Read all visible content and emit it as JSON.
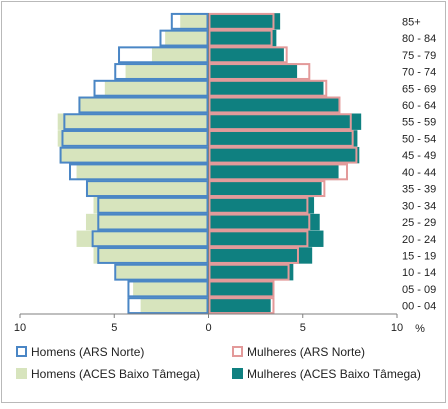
{
  "chart_data": {
    "type": "bar",
    "subtype": "population-pyramid",
    "unit_label": "%",
    "xlim": [
      -10,
      10
    ],
    "x_ticks": [
      "10",
      "5",
      "0",
      "5",
      "10"
    ],
    "categories": [
      "00 - 04",
      "05 - 09",
      "10 - 14",
      "15 - 19",
      "20 - 24",
      "25 - 29",
      "30 - 34",
      "35 - 39",
      "40 - 44",
      "45 - 49",
      "50 - 54",
      "55 - 59",
      "60 - 64",
      "65 - 69",
      "70 - 74",
      "75 - 79",
      "80 - 84",
      "85+"
    ],
    "series": [
      {
        "name": "Homens (ACES Baixo Tâmega)",
        "side": "left",
        "style": "filled",
        "color": "#d7e4bd",
        "values": [
          3.6,
          4.0,
          4.9,
          6.1,
          7.0,
          6.5,
          6.1,
          6.4,
          7.0,
          7.9,
          8.0,
          8.0,
          6.9,
          5.5,
          4.4,
          3.0,
          2.3,
          1.5
        ]
      },
      {
        "name": "Homens (ARS Norte)",
        "side": "left",
        "style": "outline",
        "color": "#4a86c5",
        "values": [
          4.3,
          4.3,
          5.0,
          5.9,
          6.2,
          5.9,
          5.9,
          6.5,
          7.4,
          7.9,
          7.8,
          7.7,
          6.9,
          6.1,
          5.0,
          4.8,
          2.6,
          2.0
        ]
      },
      {
        "name": "Mulheres (ACES Baixo Tâmega)",
        "side": "right",
        "style": "filled",
        "color": "#0f8080",
        "values": [
          3.3,
          3.4,
          4.5,
          5.5,
          6.1,
          5.9,
          5.6,
          6.0,
          6.9,
          8.0,
          7.9,
          8.1,
          6.9,
          6.1,
          4.7,
          4.0,
          3.6,
          3.8
        ]
      },
      {
        "name": "Mulheres (ARS Norte)",
        "side": "right",
        "style": "outline",
        "color": "#e39a9a",
        "values": [
          3.5,
          3.5,
          4.3,
          4.8,
          5.3,
          5.4,
          5.3,
          6.2,
          7.4,
          7.9,
          7.7,
          7.6,
          7.0,
          6.3,
          5.4,
          4.2,
          3.4,
          3.5
        ]
      }
    ],
    "legend": {
      "position": "bottom",
      "items": [
        {
          "label": "Homens (ARS Norte)",
          "swatch": "outline",
          "color": "#4a86c5"
        },
        {
          "label": "Mulheres (ARS Norte)",
          "swatch": "outline",
          "color": "#e39a9a"
        },
        {
          "label": "Homens (ACES Baixo Tâmega)",
          "swatch": "filled",
          "color": "#d7e4bd"
        },
        {
          "label": "Mulheres (ACES Baixo Tâmega)",
          "swatch": "filled",
          "color": "#0f8080"
        }
      ]
    },
    "grid": false
  }
}
